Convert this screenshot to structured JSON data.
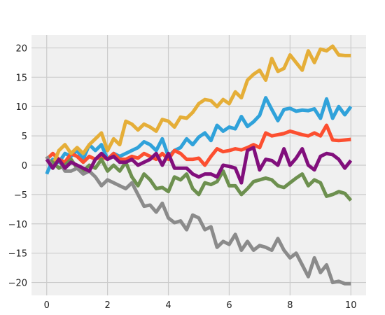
{
  "chart_data": {
    "type": "line",
    "title": "",
    "xlabel": "",
    "ylabel": "",
    "xlim": [
      -0.5,
      10.5
    ],
    "ylim": [
      -22.2,
      22.2
    ],
    "xticks": [
      0,
      2,
      4,
      6,
      8,
      10
    ],
    "xtick_labels": [
      "0",
      "2",
      "4",
      "6",
      "8",
      "10"
    ],
    "yticks": [
      -20,
      -15,
      -10,
      -5,
      0,
      5,
      10,
      15,
      20
    ],
    "ytick_labels": [
      "−20",
      "−15",
      "−10",
      "−5",
      "0",
      "5",
      "10",
      "15",
      "20"
    ],
    "grid": true,
    "legend": "none",
    "background": "#f0f0f0",
    "x": [
      0,
      0.2,
      0.4,
      0.6,
      0.8,
      1.0,
      1.2,
      1.4,
      1.6,
      1.8,
      2.0,
      2.2,
      2.4,
      2.6,
      2.8,
      3.0,
      3.2,
      3.4,
      3.6,
      3.8,
      4.0,
      4.2,
      4.4,
      4.6,
      4.8,
      5.0,
      5.2,
      5.4,
      5.6,
      5.8,
      6.0,
      6.2,
      6.4,
      6.6,
      6.8,
      7.0,
      7.2,
      7.4,
      7.6,
      7.8,
      8.0,
      8.2,
      8.4,
      8.6,
      8.8,
      9.0,
      9.2,
      9.4,
      9.6,
      9.8,
      10.0
    ],
    "series": [
      {
        "color": "#30a2da",
        "values": [
          -1.5,
          1.0,
          0.5,
          2.0,
          1.5,
          2.5,
          1.0,
          3.5,
          2.5,
          3.5,
          1.0,
          2.0,
          1.5,
          2.0,
          2.5,
          3.0,
          4.0,
          3.5,
          2.5,
          4.5,
          1.5,
          2.5,
          3.0,
          4.5,
          3.5,
          4.8,
          5.5,
          4.2,
          6.8,
          5.8,
          6.5,
          6.2,
          8.3,
          6.6,
          7.4,
          8.5,
          11.5,
          9.5,
          7.6,
          9.5,
          9.7,
          9.2,
          9.4,
          9.3,
          9.6,
          8.0,
          11.3,
          8.0,
          10.0,
          8.6,
          10.0
        ]
      },
      {
        "color": "#fc4f30",
        "values": [
          1.0,
          2.0,
          1.0,
          0.5,
          2.0,
          1.5,
          0.5,
          1.5,
          1.0,
          1.5,
          1.0,
          2.0,
          1.0,
          1.0,
          1.5,
          1.2,
          2.0,
          1.5,
          1.0,
          2.0,
          1.0,
          2.5,
          2.0,
          1.0,
          1.0,
          1.2,
          0.0,
          1.5,
          2.8,
          2.3,
          2.5,
          2.8,
          2.6,
          3.0,
          3.5,
          3.0,
          5.5,
          5.0,
          5.2,
          5.4,
          5.8,
          5.5,
          5.2,
          5.0,
          5.5,
          5.0,
          6.8,
          4.3,
          4.2,
          4.3,
          4.4
        ]
      },
      {
        "color": "#e5ae38",
        "values": [
          1.0,
          0.0,
          2.5,
          3.5,
          2.0,
          3.0,
          2.0,
          3.5,
          4.5,
          5.5,
          2.5,
          4.5,
          3.5,
          7.5,
          7.0,
          6.0,
          7.0,
          6.5,
          5.8,
          7.8,
          7.5,
          6.5,
          8.2,
          8.0,
          9.0,
          10.5,
          11.2,
          11.0,
          10.0,
          11.2,
          10.5,
          12.5,
          11.5,
          14.5,
          15.5,
          16.2,
          14.5,
          18.2,
          16.0,
          16.5,
          18.8,
          17.5,
          16.2,
          19.5,
          17.5,
          19.8,
          19.5,
          20.3,
          18.8,
          18.7,
          18.7
        ]
      },
      {
        "color": "#6d904f",
        "values": [
          1.0,
          0.5,
          -0.5,
          0.0,
          1.0,
          -0.5,
          -1.0,
          0.0,
          -0.5,
          1.0,
          -1.0,
          0.0,
          -1.0,
          0.5,
          -2.0,
          -3.5,
          -1.5,
          -2.5,
          -4.0,
          -3.8,
          -4.5,
          -2.0,
          -2.5,
          -1.5,
          -4.0,
          -5.0,
          -3.0,
          -3.3,
          -2.8,
          -1.0,
          -3.5,
          -3.5,
          -5.0,
          -4.0,
          -2.8,
          -2.5,
          -2.2,
          -2.5,
          -3.5,
          -3.8,
          -3.0,
          -2.2,
          -1.5,
          -3.5,
          -2.5,
          -3.0,
          -5.3,
          -5.0,
          -4.5,
          -4.8,
          -6.0
        ]
      },
      {
        "color": "#8b8b8b",
        "values": [
          1.5,
          -0.5,
          1.0,
          -1.0,
          -1.0,
          -0.5,
          -1.5,
          -1.0,
          -2.0,
          -3.5,
          -2.5,
          -3.0,
          -3.5,
          -4.0,
          -3.0,
          -5.0,
          -7.0,
          -6.8,
          -8.0,
          -6.5,
          -9.0,
          -9.8,
          -9.5,
          -11.0,
          -8.5,
          -9.0,
          -11.0,
          -10.5,
          -14.0,
          -13.0,
          -13.5,
          -11.8,
          -14.5,
          -13.0,
          -14.5,
          -13.7,
          -14.0,
          -14.5,
          -12.5,
          -14.5,
          -15.8,
          -15.0,
          -17.0,
          -19.0,
          -15.8,
          -18.3,
          -17.0,
          -20.0,
          -19.8,
          -20.2,
          -20.2
        ]
      },
      {
        "color": "#810f7c",
        "values": [
          1.0,
          -0.5,
          1.0,
          -0.5,
          0.5,
          0.0,
          -0.5,
          -1.0,
          1.0,
          2.0,
          1.0,
          1.5,
          0.5,
          0.5,
          1.0,
          0.0,
          0.5,
          1.0,
          2.0,
          0.0,
          2.0,
          -0.5,
          -0.5,
          -0.5,
          -1.5,
          -2.0,
          -1.5,
          -1.5,
          -2.0,
          0.0,
          -0.2,
          -0.5,
          -3.0,
          2.5,
          3.0,
          -0.8,
          1.0,
          0.8,
          0.0,
          2.8,
          0.0,
          1.2,
          2.8,
          0.0,
          -0.8,
          1.5,
          2.0,
          1.8,
          1.0,
          -0.5,
          0.8
        ]
      }
    ]
  }
}
